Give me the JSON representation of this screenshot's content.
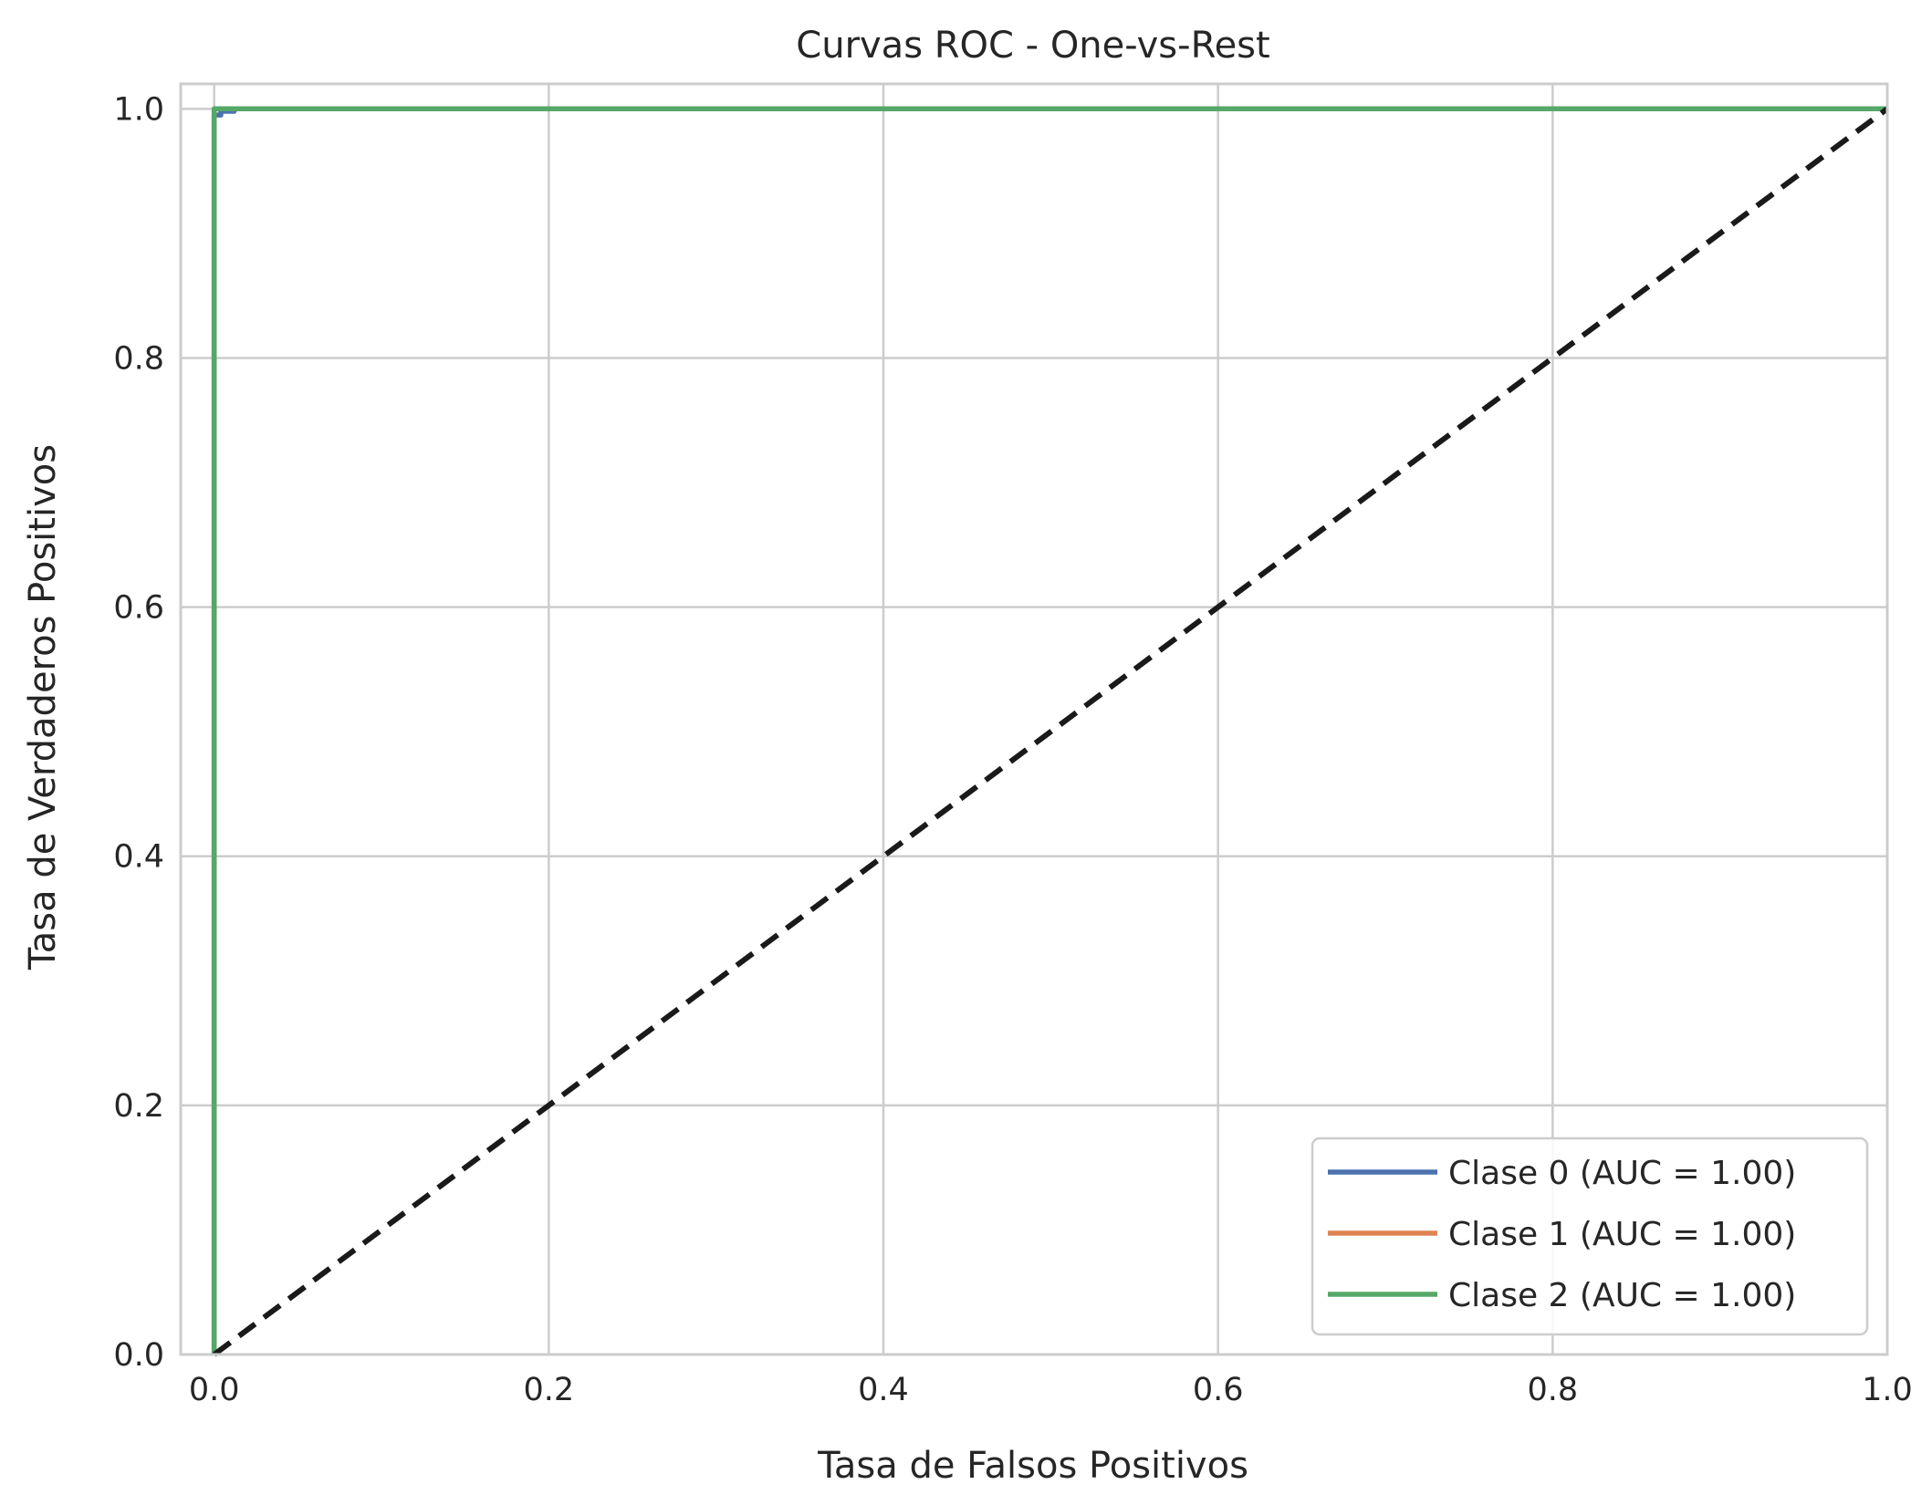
{
  "chart_data": {
    "type": "line",
    "title": "Curvas ROC - One-vs-Rest",
    "xlabel": "Tasa de Falsos Positivos",
    "ylabel": "Tasa de Verdaderos Positivos",
    "xlim": [
      -0.02,
      1.0
    ],
    "ylim": [
      0.0,
      1.02
    ],
    "x_ticks": [
      "0.0",
      "0.2",
      "0.4",
      "0.6",
      "0.8",
      "1.0"
    ],
    "y_ticks": [
      "0.0",
      "0.2",
      "0.4",
      "0.6",
      "0.8",
      "1.0"
    ],
    "grid": true,
    "legend_position": "lower-right",
    "series": [
      {
        "name": "Clase 0 (AUC = 1.00)",
        "color": "#4c72b0",
        "x": [
          0.0,
          0.0,
          0.0,
          0.004,
          0.004,
          0.012,
          0.012,
          1.0
        ],
        "y": [
          0.0,
          0.99,
          0.995,
          0.995,
          0.998,
          0.998,
          1.0,
          1.0
        ]
      },
      {
        "name": "Clase 1 (AUC = 1.00)",
        "color": "#dd8452",
        "x": [
          0.0,
          0.0,
          1.0
        ],
        "y": [
          0.0,
          1.0,
          1.0
        ]
      },
      {
        "name": "Clase 2 (AUC = 1.00)",
        "color": "#55a868",
        "x": [
          0.0,
          0.0,
          1.0
        ],
        "y": [
          0.0,
          1.0,
          1.0
        ]
      }
    ],
    "reference_line": {
      "x": [
        0.0,
        1.0
      ],
      "y": [
        0.0,
        1.0
      ],
      "color": "#1a1a1a",
      "style": "dashed"
    }
  }
}
